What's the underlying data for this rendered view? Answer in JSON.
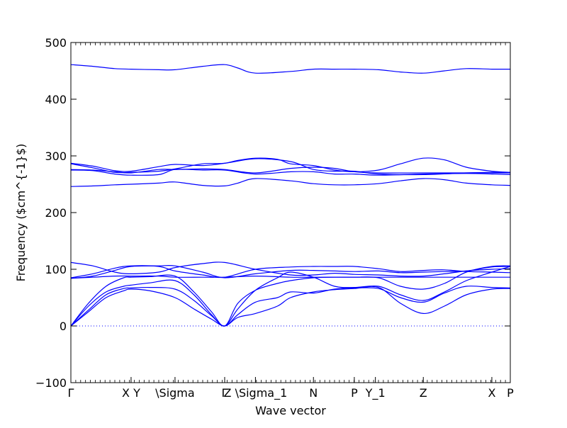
{
  "chart_data": {
    "type": "line",
    "title": "",
    "xlabel": "Wave vector",
    "ylabel": "Frequency ($cm^{-1}$)",
    "ylim": [
      -100,
      500
    ],
    "yticks": [
      -100,
      0,
      100,
      200,
      300,
      400,
      500
    ],
    "xlim": [
      0,
      1
    ],
    "grid": false,
    "line_color": "#0000ff",
    "zero_line_color": "#0000ff",
    "kpoints": [
      {
        "label": "Γ",
        "x": 0.0
      },
      {
        "label": "X Y",
        "x": 0.137
      },
      {
        "label": "\\Sigma",
        "x": 0.237
      },
      {
        "label": "Γ",
        "x": 0.35
      },
      {
        "label": "Z \\Sigma_1",
        "x": 0.42
      },
      {
        "label": "N",
        "x": 0.552
      },
      {
        "label": "P",
        "x": 0.645
      },
      {
        "label": "Y_1",
        "x": 0.693
      },
      {
        "label": "Z",
        "x": 0.802
      },
      {
        "label": "X",
        "x": 0.958
      },
      {
        "label": "P",
        "x": 1.0
      }
    ],
    "series": [
      {
        "x": [
          0,
          0.05,
          0.1,
          0.137,
          0.2,
          0.237,
          0.3,
          0.35,
          0.38,
          0.42,
          0.5,
          0.552,
          0.6,
          0.645,
          0.7,
          0.75,
          0.802,
          0.85,
          0.9,
          0.958,
          1.0
        ],
        "values": [
          461,
          458,
          454,
          453,
          452,
          452,
          458,
          461,
          455,
          446,
          449,
          453,
          453,
          453,
          452,
          448,
          446,
          450,
          454,
          453,
          453
        ]
      },
      {
        "x": [
          0,
          0.05,
          0.1,
          0.137,
          0.2,
          0.237,
          0.3,
          0.35,
          0.38,
          0.42,
          0.47,
          0.5,
          0.552,
          0.6,
          0.645,
          0.7,
          0.75,
          0.802,
          0.85,
          0.9,
          0.958,
          1.0
        ],
        "values": [
          287,
          282,
          274,
          273,
          281,
          285,
          283,
          287,
          292,
          296,
          294,
          286,
          283,
          275,
          272,
          275,
          286,
          296,
          293,
          280,
          273,
          271
        ]
      },
      {
        "x": [
          0,
          0.05,
          0.1,
          0.137,
          0.2,
          0.237,
          0.3,
          0.35,
          0.42,
          0.5,
          0.552,
          0.6,
          0.645,
          0.7,
          0.802,
          0.9,
          0.958,
          1.0
        ],
        "values": [
          276,
          275,
          272,
          270,
          276,
          276,
          277,
          276,
          270,
          278,
          280,
          278,
          272,
          270,
          270,
          270,
          270,
          270
        ]
      },
      {
        "x": [
          0,
          0.05,
          0.1,
          0.137,
          0.2,
          0.237,
          0.3,
          0.35,
          0.42,
          0.5,
          0.552,
          0.6,
          0.645,
          0.7,
          0.802,
          0.9,
          0.958,
          1.0
        ],
        "values": [
          275,
          274,
          268,
          266,
          267,
          276,
          275,
          275,
          268,
          272,
          272,
          268,
          268,
          266,
          268,
          269,
          268,
          267
        ]
      },
      {
        "x": [
          0,
          0.05,
          0.1,
          0.137,
          0.2,
          0.237,
          0.3,
          0.35,
          0.42,
          0.5,
          0.552,
          0.6,
          0.645,
          0.7,
          0.802,
          0.9,
          0.958,
          1.0
        ],
        "values": [
          286,
          279,
          271,
          271,
          273,
          277,
          286,
          287,
          295,
          290,
          276,
          273,
          273,
          268,
          267,
          270,
          271,
          271
        ]
      },
      {
        "x": [
          0,
          0.05,
          0.1,
          0.137,
          0.2,
          0.237,
          0.3,
          0.35,
          0.38,
          0.42,
          0.5,
          0.552,
          0.6,
          0.645,
          0.7,
          0.75,
          0.802,
          0.85,
          0.9,
          0.958,
          1.0
        ],
        "values": [
          246,
          247,
          249,
          250,
          252,
          254,
          248,
          247,
          252,
          260,
          256,
          251,
          249,
          249,
          251,
          256,
          260,
          258,
          252,
          249,
          248
        ]
      },
      {
        "x": [
          0,
          0.05,
          0.1,
          0.137,
          0.2,
          0.237,
          0.3,
          0.35,
          0.42,
          0.5,
          0.552,
          0.6,
          0.645,
          0.7,
          0.75,
          0.802,
          0.85,
          0.9,
          0.958,
          1.0
        ],
        "values": [
          112,
          106,
          95,
          92,
          95,
          103,
          110,
          112,
          100,
          90,
          90,
          93,
          91,
          90,
          88,
          88,
          92,
          97,
          100,
          101
        ]
      },
      {
        "x": [
          0,
          0.05,
          0.1,
          0.137,
          0.2,
          0.237,
          0.3,
          0.35,
          0.42,
          0.5,
          0.552,
          0.6,
          0.645,
          0.7,
          0.75,
          0.802,
          0.85,
          0.9,
          0.958,
          1.0
        ],
        "values": [
          85,
          92,
          102,
          106,
          105,
          97,
          90,
          86,
          100,
          104,
          105,
          105,
          105,
          101,
          96,
          98,
          99,
          96,
          95,
          94
        ]
      },
      {
        "x": [
          0,
          0.05,
          0.1,
          0.137,
          0.2,
          0.237,
          0.3,
          0.35,
          0.42,
          0.5,
          0.552,
          0.6,
          0.645,
          0.7,
          0.75,
          0.802,
          0.85,
          0.9,
          0.958,
          1.0
        ],
        "values": [
          84,
          88,
          98,
          105,
          106,
          106,
          95,
          85,
          92,
          98,
          98,
          97,
          96,
          97,
          94,
          95,
          96,
          97,
          104,
          105
        ]
      },
      {
        "x": [
          0,
          0.05,
          0.1,
          0.137,
          0.2,
          0.237,
          0.3,
          0.35,
          0.42,
          0.5,
          0.552,
          0.6,
          0.645,
          0.7,
          0.75,
          0.802,
          0.85,
          0.9,
          0.958,
          1.0
        ],
        "values": [
          84,
          86,
          88,
          88,
          88,
          86,
          86,
          86,
          88,
          86,
          86,
          86,
          86,
          86,
          86,
          86,
          86,
          86,
          86,
          86
        ]
      },
      {
        "x": [
          0,
          0.04,
          0.08,
          0.12,
          0.137,
          0.18,
          0.237,
          0.28,
          0.32,
          0.35,
          0.38,
          0.42,
          0.47,
          0.5,
          0.552,
          0.6,
          0.645,
          0.7,
          0.75,
          0.802,
          0.85,
          0.9,
          0.958,
          1.0
        ],
        "values": [
          0,
          40,
          70,
          85,
          86,
          87,
          88,
          60,
          25,
          0,
          40,
          63,
          75,
          80,
          85,
          86,
          86,
          85,
          70,
          65,
          75,
          95,
          105,
          106
        ]
      },
      {
        "x": [
          0,
          0.04,
          0.08,
          0.12,
          0.137,
          0.18,
          0.237,
          0.28,
          0.32,
          0.35,
          0.38,
          0.42,
          0.47,
          0.5,
          0.552,
          0.6,
          0.645,
          0.7,
          0.75,
          0.802,
          0.85,
          0.9,
          0.958,
          1.0
        ],
        "values": [
          0,
          35,
          60,
          70,
          72,
          76,
          80,
          55,
          20,
          0,
          30,
          63,
          85,
          95,
          86,
          70,
          68,
          70,
          55,
          45,
          60,
          80,
          95,
          105
        ]
      },
      {
        "x": [
          0,
          0.04,
          0.08,
          0.12,
          0.137,
          0.18,
          0.237,
          0.28,
          0.32,
          0.35,
          0.38,
          0.42,
          0.47,
          0.5,
          0.552,
          0.6,
          0.645,
          0.7,
          0.75,
          0.802,
          0.85,
          0.9,
          0.958,
          1.0
        ],
        "values": [
          0,
          28,
          55,
          66,
          67,
          68,
          65,
          45,
          18,
          0,
          20,
          42,
          50,
          60,
          58,
          65,
          67,
          66,
          50,
          42,
          58,
          70,
          68,
          67
        ]
      },
      {
        "x": [
          0,
          0.04,
          0.08,
          0.12,
          0.137,
          0.18,
          0.237,
          0.28,
          0.32,
          0.35,
          0.38,
          0.42,
          0.47,
          0.5,
          0.552,
          0.6,
          0.645,
          0.7,
          0.75,
          0.802,
          0.85,
          0.9,
          0.958,
          1.0
        ],
        "values": [
          0,
          25,
          50,
          62,
          65,
          62,
          50,
          30,
          12,
          0,
          15,
          22,
          35,
          50,
          60,
          64,
          66,
          68,
          40,
          22,
          35,
          55,
          65,
          66
        ]
      }
    ]
  }
}
